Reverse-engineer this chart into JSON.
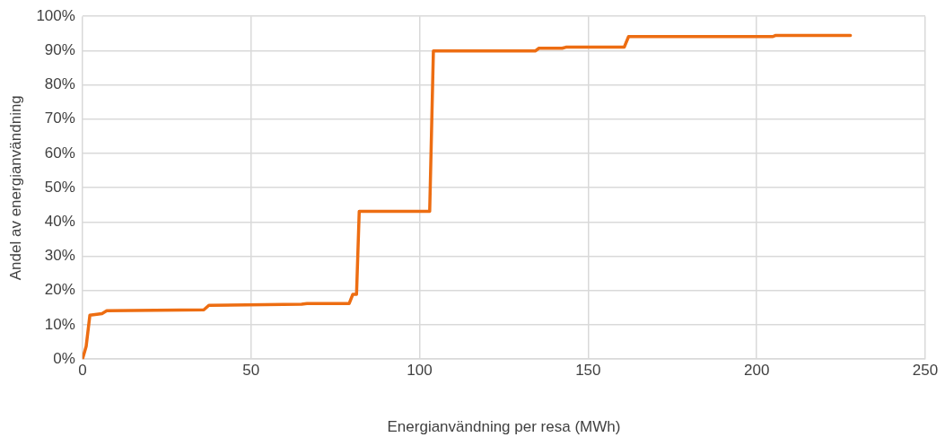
{
  "chart_data": {
    "type": "line",
    "xlabel": "Energianvändning per resa (MWh)",
    "ylabel": "Andel av energianvändning",
    "xlim": [
      0,
      250
    ],
    "xticks": [
      0,
      50,
      100,
      150,
      200,
      250
    ],
    "ylim": [
      0,
      100
    ],
    "yticks": [
      {
        "value": 0,
        "label": "0%"
      },
      {
        "value": 10,
        "label": "10%"
      },
      {
        "value": 20,
        "label": "20%"
      },
      {
        "value": 30,
        "label": "30%"
      },
      {
        "value": 40,
        "label": "40%"
      },
      {
        "value": 50,
        "label": "50%"
      },
      {
        "value": 60,
        "label": "60%"
      },
      {
        "value": 70,
        "label": "70%"
      },
      {
        "value": 80,
        "label": "80%"
      },
      {
        "value": 90,
        "label": "90%"
      },
      {
        "value": 100,
        "label": "100%"
      }
    ],
    "grid": true,
    "legend": false,
    "marker": "none",
    "line_style": "solid",
    "series": [
      {
        "color": "#ed6d12",
        "x": [
          0,
          1.1,
          2.2,
          5.8,
          7.2,
          36,
          37.5,
          65,
          66.6,
          79.1,
          80.2,
          81.3,
          82.1,
          103,
          104.1,
          134.3,
          135.4,
          142.3,
          143.4,
          160.7,
          162,
          204.8,
          205.5,
          227.8
        ],
        "values": [
          0,
          3.7,
          12.8,
          13.3,
          14.1,
          14.4,
          15.7,
          16,
          16.2,
          16.2,
          18.9,
          18.9,
          43.1,
          43.1,
          89.9,
          89.9,
          90.7,
          90.7,
          91,
          91,
          94.1,
          94.1,
          94.4,
          94.4
        ]
      }
    ]
  }
}
